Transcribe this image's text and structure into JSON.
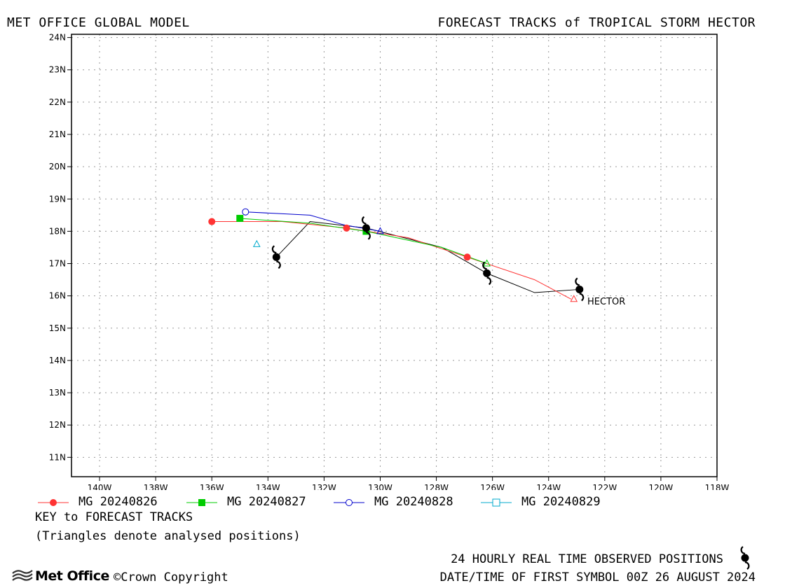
{
  "header": {
    "left": "MET OFFICE GLOBAL MODEL",
    "right": "FORECAST TRACKS of TROPICAL STORM HECTOR"
  },
  "map": {
    "lon_range": [
      -141,
      -118
    ],
    "lat_range": [
      10.4,
      24.1
    ],
    "x_ticks": [
      {
        "value": -140,
        "label": "140W"
      },
      {
        "value": -138,
        "label": "138W"
      },
      {
        "value": -136,
        "label": "136W"
      },
      {
        "value": -134,
        "label": "134W"
      },
      {
        "value": -132,
        "label": "132W"
      },
      {
        "value": -130,
        "label": "130W"
      },
      {
        "value": -128,
        "label": "128W"
      },
      {
        "value": -126,
        "label": "126W"
      },
      {
        "value": -124,
        "label": "124W"
      },
      {
        "value": -122,
        "label": "122W"
      },
      {
        "value": -120,
        "label": "120W"
      },
      {
        "value": -118,
        "label": "118W"
      }
    ],
    "y_ticks": [
      {
        "value": 11,
        "label": "11N"
      },
      {
        "value": 12,
        "label": "12N"
      },
      {
        "value": 13,
        "label": "13N"
      },
      {
        "value": 14,
        "label": "14N"
      },
      {
        "value": 15,
        "label": "15N"
      },
      {
        "value": 16,
        "label": "16N"
      },
      {
        "value": 17,
        "label": "17N"
      },
      {
        "value": 18,
        "label": "18N"
      },
      {
        "value": 19,
        "label": "19N"
      },
      {
        "value": 20,
        "label": "20N"
      },
      {
        "value": 21,
        "label": "21N"
      },
      {
        "value": 22,
        "label": "22N"
      },
      {
        "value": 23,
        "label": "23N"
      },
      {
        "value": 24,
        "label": "24N"
      }
    ],
    "grid": true,
    "storm_label": "HECTOR",
    "observed_track": {
      "color": "#000000",
      "line": [
        [
          -122.9,
          16.2
        ],
        [
          -124.5,
          16.1
        ],
        [
          -126.2,
          16.7
        ],
        [
          -127.8,
          17.5
        ],
        [
          -130.5,
          18.1
        ],
        [
          -132.5,
          18.3
        ],
        [
          -133.7,
          17.2
        ]
      ],
      "symbols": [
        [
          -122.9,
          16.2
        ],
        [
          -126.2,
          16.7
        ],
        [
          -130.5,
          18.1
        ],
        [
          -133.7,
          17.2
        ]
      ]
    },
    "forecast_tracks": [
      {
        "name": "MG 20240826",
        "color": "#ff3333",
        "marker": "filled-circle",
        "line": [
          [
            -123.2,
            15.9
          ],
          [
            -124.5,
            16.5
          ],
          [
            -126.9,
            17.2
          ],
          [
            -129.0,
            17.8
          ],
          [
            -131.2,
            18.1
          ],
          [
            -133.5,
            18.3
          ],
          [
            -136.0,
            18.3
          ]
        ],
        "markers": [
          [
            -126.9,
            17.2
          ],
          [
            -131.2,
            18.1
          ],
          [
            -136.0,
            18.3
          ]
        ],
        "analysed": [
          -123.1,
          15.9
        ]
      },
      {
        "name": "MG 20240827",
        "color": "#00cc00",
        "marker": "filled-square",
        "line": [
          [
            -126.2,
            17.0
          ],
          [
            -127.8,
            17.5
          ],
          [
            -130.5,
            18.0
          ],
          [
            -132.5,
            18.25
          ],
          [
            -135.0,
            18.4
          ]
        ],
        "markers": [
          [
            -130.5,
            18.0
          ],
          [
            -135.0,
            18.4
          ]
        ],
        "analysed": [
          -126.2,
          17.0
        ]
      },
      {
        "name": "MG 20240828",
        "color": "#0000cc",
        "marker": "open-circle",
        "line": [
          [
            -130.0,
            18.0
          ],
          [
            -131.3,
            18.2
          ],
          [
            -132.5,
            18.5
          ],
          [
            -134.8,
            18.6
          ]
        ],
        "markers": [
          [
            -134.8,
            18.6
          ]
        ],
        "analysed": [
          -130.0,
          18.0
        ]
      },
      {
        "name": "MG 20240829",
        "color": "#00aacc",
        "marker": "open-square",
        "line": [],
        "markers": [],
        "analysed": [
          -134.4,
          17.6
        ]
      }
    ]
  },
  "legend": [
    {
      "label": "MG 20240826",
      "color": "#ff3333",
      "marker": "filled-circle"
    },
    {
      "label": "MG 20240827",
      "color": "#00cc00",
      "marker": "filled-square"
    },
    {
      "label": "MG 20240828",
      "color": "#0000cc",
      "marker": "open-circle"
    },
    {
      "label": "MG 20240829",
      "color": "#00aacc",
      "marker": "open-square"
    }
  ],
  "key": {
    "title": "KEY to FORECAST TRACKS",
    "note": "(Triangles denote analysed positions)"
  },
  "footer": {
    "observed_note": "24 HOURLY REAL TIME OBSERVED POSITIONS",
    "date_note": "DATE/TIME OF FIRST SYMBOL 00Z 26 AUGUST 2024",
    "logo": "Met Office",
    "copyright": "©Crown Copyright"
  }
}
